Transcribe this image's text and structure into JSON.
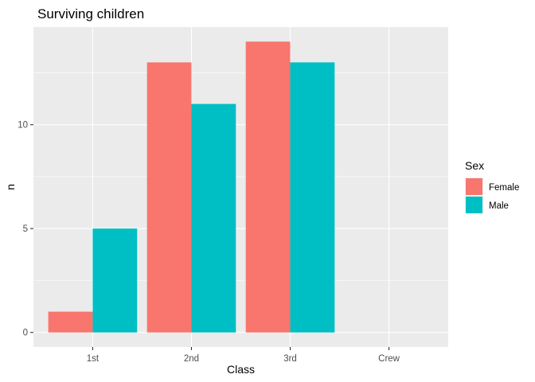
{
  "chart_data": {
    "type": "bar",
    "title": "Surviving children",
    "xlabel": "Class",
    "ylabel": "n",
    "categories": [
      "1st",
      "2nd",
      "3rd",
      "Crew"
    ],
    "series": [
      {
        "name": "Female",
        "color": "#F8766D",
        "values": [
          1,
          13,
          14,
          0
        ]
      },
      {
        "name": "Male",
        "color": "#00BFC4",
        "values": [
          5,
          11,
          13,
          0
        ]
      }
    ],
    "ylim": [
      -0.7,
      14.7
    ],
    "yticks": [
      0,
      5,
      10
    ],
    "grid": true,
    "panel_background": "#EBEBEB",
    "legend": {
      "title": "Sex",
      "position": "right"
    }
  }
}
